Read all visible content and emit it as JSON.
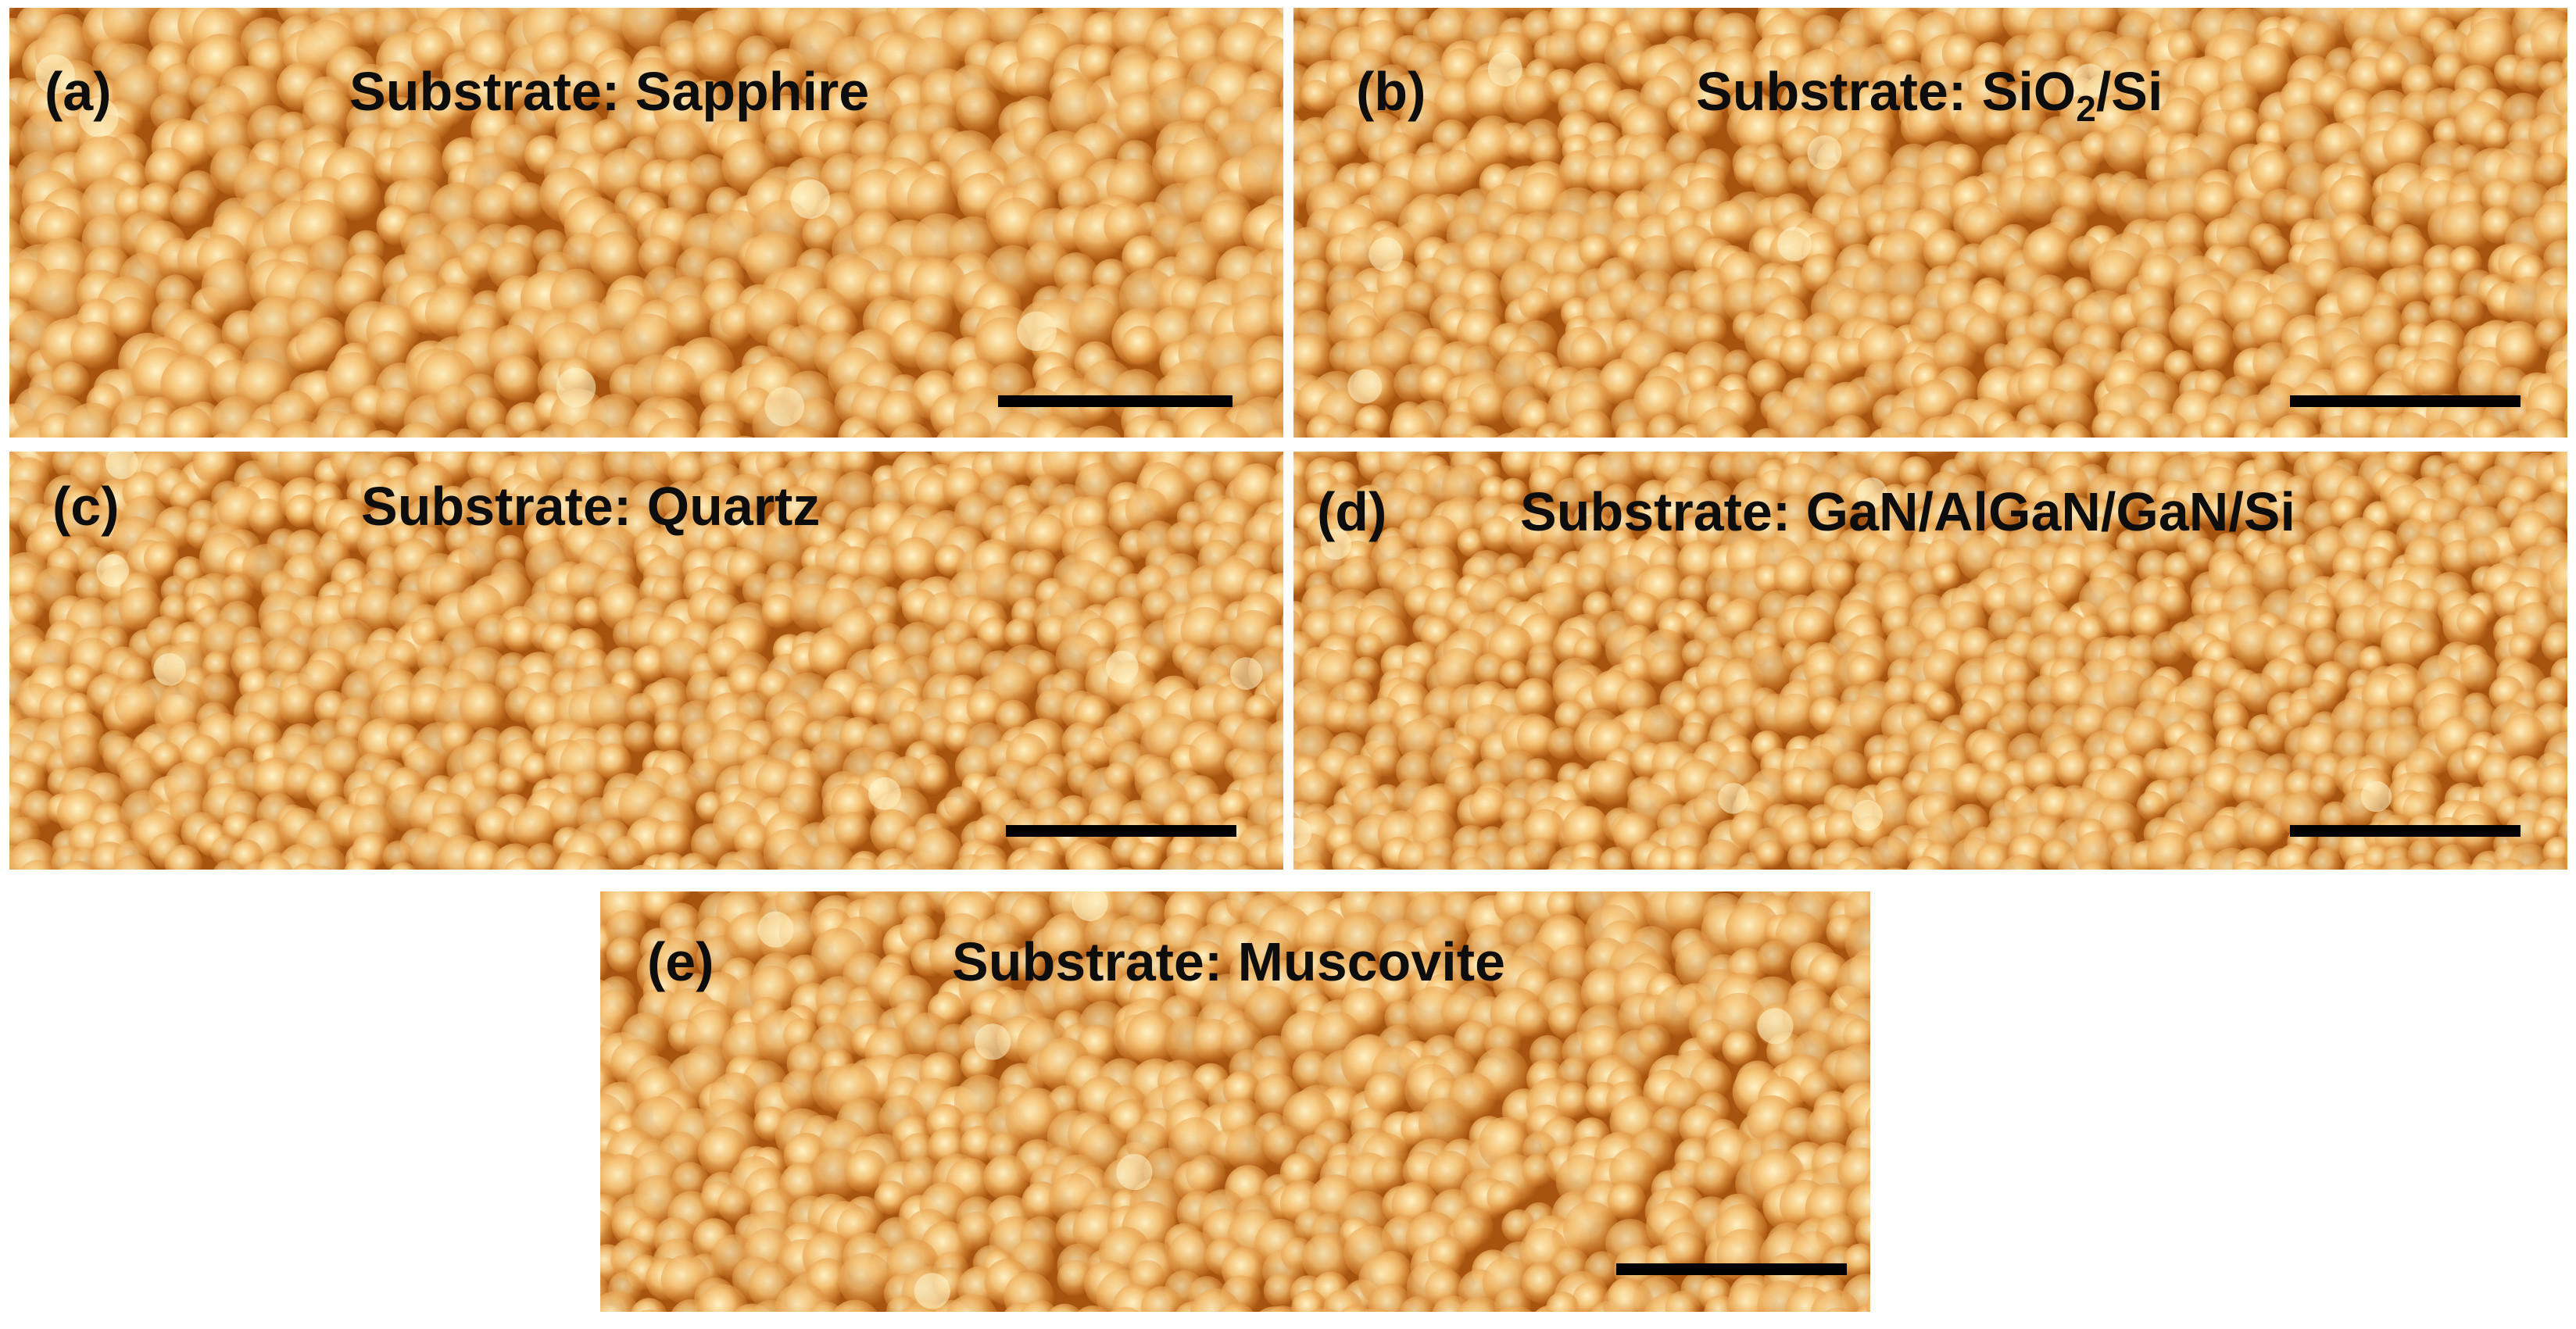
{
  "colors": {
    "low": "#a6540f",
    "mid": "#df8f3a",
    "high": "#fff4c8",
    "scale_bar": "#000000"
  },
  "panels": {
    "a": {
      "letter": "(a)",
      "title_prefix": "Substrate: ",
      "title_main": "Sapphire"
    },
    "b": {
      "letter": "(b)",
      "title_prefix": "Substrate: ",
      "title_main": "SiO",
      "title_sub": "2",
      "title_suffix": "/Si"
    },
    "c": {
      "letter": "(c)",
      "title_prefix": "Substrate: ",
      "title_main": "Quartz"
    },
    "d": {
      "letter": "(d)",
      "title_prefix": "Substrate: ",
      "title_main": "GaN/AlGaN/GaN/Si"
    },
    "e": {
      "letter": "(e)",
      "title_prefix": "Substrate: ",
      "title_main": "Muscovite"
    }
  }
}
